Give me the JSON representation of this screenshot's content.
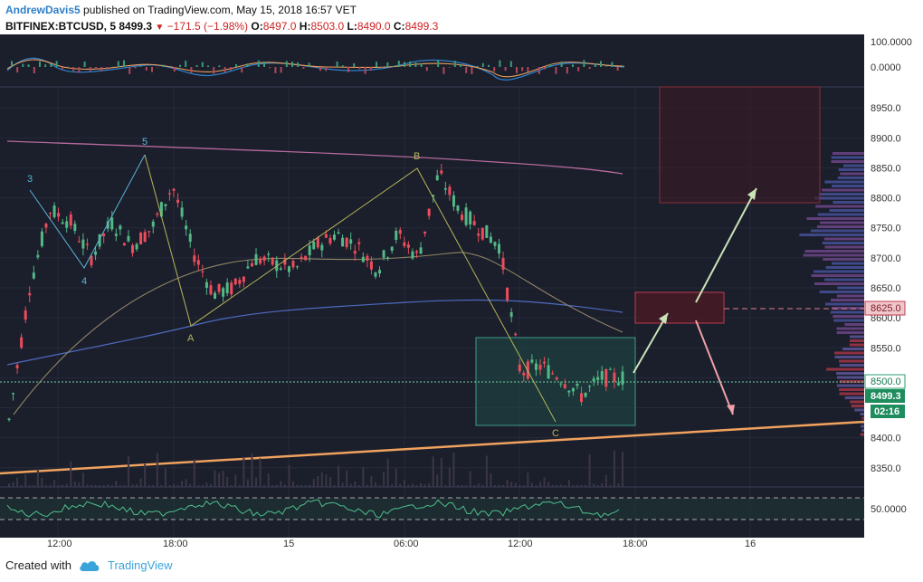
{
  "header": {
    "author": "AndrewDavis5",
    "published_text": "published on TradingView.com, May 15, 2018 16:57 VET",
    "symbol": "BITFINEX:BTCUSD, 5",
    "last": "8499.3",
    "change": "−171.5 (−1.98%)",
    "o_label": "O:",
    "o_val": "8497.0",
    "h_label": "H:",
    "h_val": "8503.0",
    "l_label": "L:",
    "l_val": "8490.0",
    "c_label": "C:",
    "c_val": "8499.3"
  },
  "footer": {
    "created_with": "Created with",
    "brand": "TradingView"
  },
  "colors": {
    "bg": "#1b1e2b",
    "up": "#53b987",
    "down": "#eb4d5c",
    "accent": "#2f7fc8",
    "trend": "#f0a25e",
    "wave_abc": "#b4b85a",
    "wave_1235": "#5ab4d8"
  },
  "chart_data": {
    "type": "candlestick",
    "price_axis": {
      "ticks": [
        8350,
        8400,
        8450,
        8500,
        8550,
        8600,
        8650,
        8700,
        8750,
        8800,
        8850,
        8900,
        8950
      ],
      "tick_labels": [
        "8350.0",
        "8400.0",
        "",
        "",
        "8550.0",
        "8600.0",
        "8650.0",
        "8700.0",
        "8750.0",
        "8800.0",
        "8850.0",
        "8900.0",
        "8950.0"
      ],
      "ylim": [
        8318,
        8985
      ]
    },
    "time_axis": {
      "labels": [
        "12:00",
        "18:00",
        "15",
        "06:00",
        "12:00",
        "18:00",
        "16"
      ]
    },
    "price_badges": {
      "target": "8625.0",
      "level": "8500.0",
      "last": "8499.3",
      "countdown": "02:16"
    },
    "wave_labels": [
      "3",
      "4",
      "5",
      "A",
      "B",
      "C"
    ],
    "close_path": [
      [
        8430,
        8510
      ],
      [
        8650,
        8700
      ],
      [
        8780,
        8690
      ],
      [
        8760,
        8740
      ],
      [
        8700,
        8770
      ],
      [
        8760,
        8720
      ],
      [
        8720,
        8740
      ],
      [
        8750,
        8760
      ],
      [
        8820,
        8800
      ],
      [
        8710,
        8680
      ],
      [
        8640,
        8620
      ],
      [
        8650,
        8700
      ],
      [
        8700,
        8720
      ],
      [
        8690,
        8710
      ],
      [
        8680,
        8700
      ],
      [
        8720,
        8740
      ],
      [
        8740,
        8760
      ],
      [
        8720,
        8700
      ],
      [
        8680,
        8720
      ],
      [
        8740,
        8760
      ],
      [
        8700,
        8720
      ],
      [
        8840,
        8810
      ],
      [
        8780,
        8760
      ],
      [
        8750,
        8740
      ],
      [
        8720,
        8720
      ],
      [
        8510,
        8500
      ],
      [
        8520,
        8510
      ],
      [
        8500,
        8510
      ],
      [
        8470,
        8480
      ],
      [
        8500,
        8520
      ],
      [
        8500,
        8495
      ]
    ],
    "oscillator_top": {
      "labels": [
        "100.0000",
        "0.0000"
      ]
    },
    "oscillator_bottom": {
      "labels": [
        "50.0000"
      ]
    }
  }
}
